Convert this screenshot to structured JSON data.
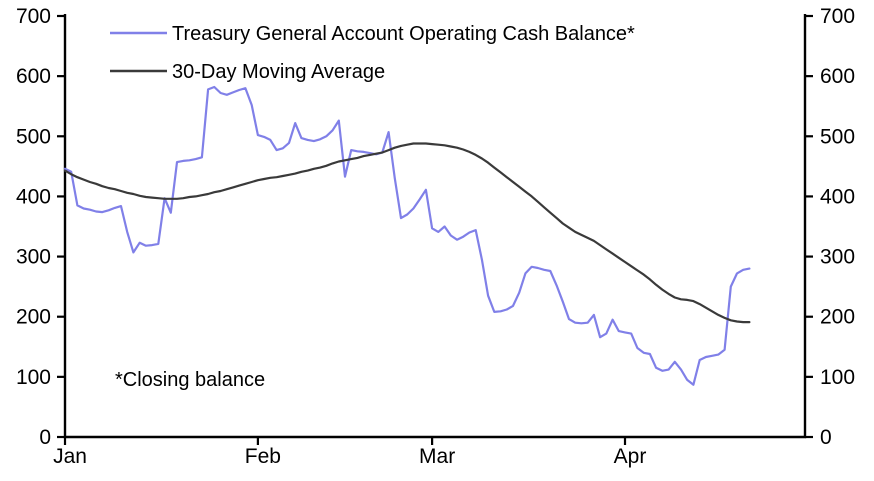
{
  "chart_data": {
    "type": "line",
    "title": "",
    "grid": false,
    "legend_position": "top-left-inside",
    "annotation": "*Closing balance",
    "x_axis": {
      "tick_labels": [
        "Jan",
        "Feb",
        "Mar",
        "Apr"
      ],
      "tick_day_offsets": [
        0,
        31,
        59,
        90
      ],
      "start": "Jan 1",
      "end": "Apr 21",
      "frequency": "daily"
    },
    "y_axis": {
      "min": 0,
      "max": 700,
      "tick_step": 100,
      "ticks": [
        0,
        100,
        200,
        300,
        400,
        500,
        600,
        700
      ],
      "mirrored_right_axis": true
    },
    "series": [
      {
        "name": "Treasury General Account Operating Cash Balance*",
        "color": "#8080e8",
        "values": [
          446,
          441,
          385,
          380,
          378,
          375,
          374,
          377,
          381,
          384,
          341,
          307,
          323,
          318,
          319,
          321,
          397,
          373,
          457,
          459,
          460,
          462,
          465,
          578,
          582,
          572,
          569,
          573,
          577,
          580,
          552,
          502,
          499,
          494,
          477,
          480,
          489,
          522,
          497,
          494,
          492,
          495,
          500,
          510,
          526,
          433,
          477,
          475,
          474,
          472,
          470,
          473,
          507,
          430,
          364,
          370,
          380,
          395,
          411,
          347,
          341,
          350,
          335,
          328,
          333,
          340,
          344,
          295,
          235,
          208,
          209,
          212,
          218,
          240,
          272,
          283,
          281,
          278,
          276,
          252,
          225,
          196,
          190,
          189,
          190,
          203,
          166,
          172,
          195,
          176,
          174,
          172,
          148,
          140,
          138,
          115,
          110,
          112,
          125,
          112,
          95,
          87,
          128,
          133,
          135,
          137,
          145,
          250,
          272,
          278,
          280
        ]
      },
      {
        "name": "30-Day Moving Average",
        "color": "#3a3a3a",
        "values": [
          443,
          437,
          432,
          428,
          424,
          421,
          417,
          414,
          412,
          409,
          406,
          404,
          401,
          399,
          398,
          397,
          396,
          396,
          396,
          397,
          399,
          400,
          402,
          404,
          407,
          409,
          412,
          415,
          418,
          421,
          424,
          427,
          429,
          431,
          432,
          434,
          436,
          438,
          441,
          443,
          446,
          448,
          451,
          455,
          458,
          460,
          462,
          464,
          467,
          469,
          471,
          473,
          477,
          481,
          484,
          486,
          488,
          488,
          488,
          487,
          486,
          485,
          483,
          481,
          478,
          474,
          469,
          463,
          456,
          448,
          440,
          432,
          424,
          416,
          408,
          400,
          391,
          382,
          373,
          364,
          355,
          348,
          341,
          336,
          331,
          326,
          319,
          312,
          305,
          298,
          291,
          284,
          277,
          270,
          262,
          253,
          245,
          238,
          232,
          229,
          228,
          226,
          221,
          215,
          209,
          203,
          198,
          194,
          192,
          191,
          191
        ]
      }
    ]
  },
  "legend": {
    "items": [
      {
        "label": "Treasury General Account Operating Cash Balance*",
        "color": "#8080e8"
      },
      {
        "label": "30-Day Moving Average",
        "color": "#3a3a3a"
      }
    ]
  },
  "footnote": "*Closing balance",
  "colors": {
    "axis": "#000000",
    "background": "#ffffff",
    "tga_line": "#8080e8",
    "ma_line": "#3a3a3a"
  }
}
